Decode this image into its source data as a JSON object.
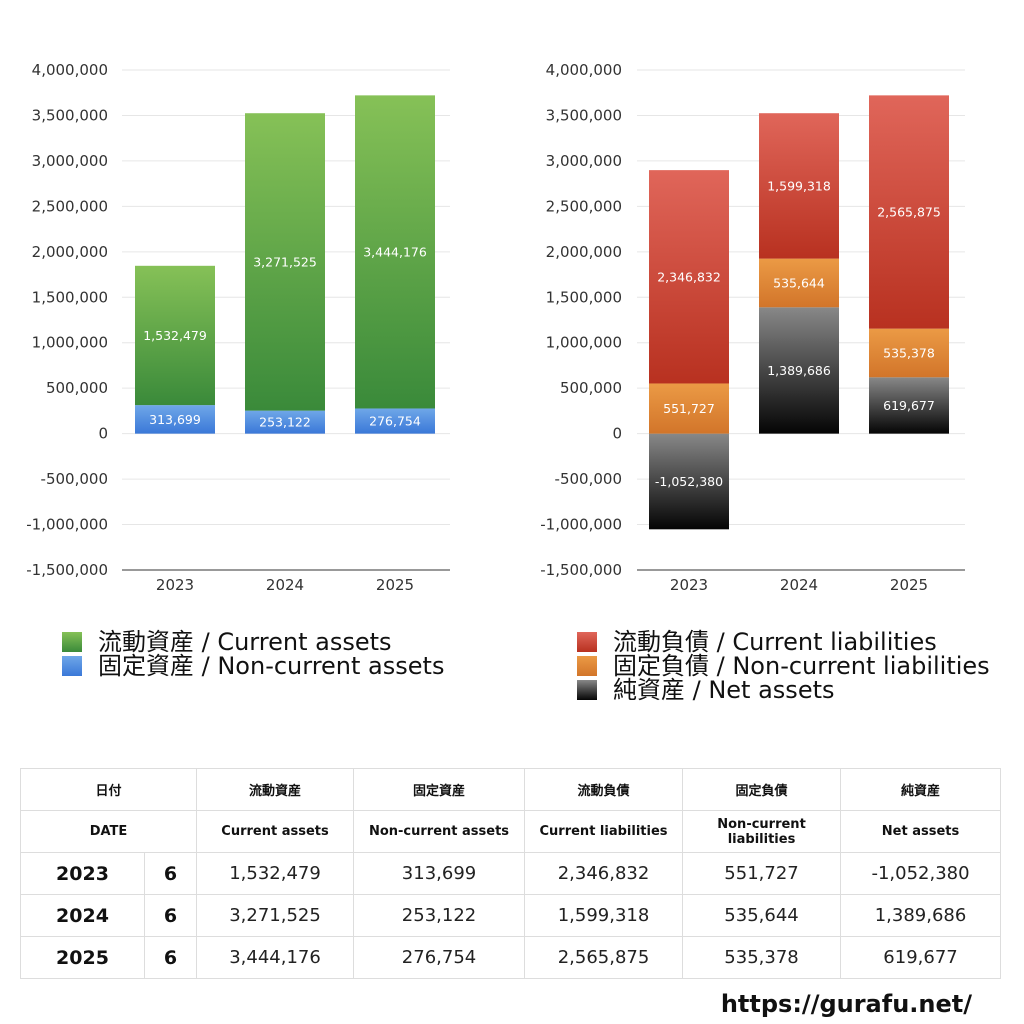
{
  "chart_data": [
    {
      "type": "bar",
      "stacked": true,
      "categories": [
        "2023",
        "2024",
        "2025"
      ],
      "ylim": [
        -1500000,
        4000000
      ],
      "yticks": [
        4000000,
        3500000,
        3000000,
        2500000,
        2000000,
        1500000,
        1000000,
        500000,
        0,
        -500000,
        -1000000,
        -1500000
      ],
      "ytick_labels": [
        "4,000,000",
        "3,500,000",
        "3,000,000",
        "2,500,000",
        "2,000,000",
        "1,500,000",
        "1,000,000",
        "500,000",
        "0",
        "-500,000",
        "-1,000,000",
        "-1,500,000"
      ],
      "series": [
        {
          "name": "固定資産 / Non-current assets",
          "values": [
            313699,
            253122,
            276754
          ],
          "labels": [
            "313,699",
            "253,122",
            "276,754"
          ],
          "color_top": "#6fa7e8",
          "color_bottom": "#3a78d8"
        },
        {
          "name": "流動資産 / Current assets",
          "values": [
            1532479,
            3271525,
            3444176
          ],
          "labels": [
            "1,532,479",
            "3,271,525",
            "3,444,176"
          ],
          "color_top": "#86c157",
          "color_bottom": "#3a8a3a"
        }
      ],
      "legend_order": [
        1,
        0
      ],
      "grid": true,
      "legend_position": "bottom"
    },
    {
      "type": "bar",
      "stacked": true,
      "categories": [
        "2023",
        "2024",
        "2025"
      ],
      "ylim": [
        -1500000,
        4000000
      ],
      "yticks": [
        4000000,
        3500000,
        3000000,
        2500000,
        2000000,
        1500000,
        1000000,
        500000,
        0,
        -500000,
        -1000000,
        -1500000
      ],
      "ytick_labels": [
        "4,000,000",
        "3,500,000",
        "3,000,000",
        "2,500,000",
        "2,000,000",
        "1,500,000",
        "1,000,000",
        "500,000",
        "0",
        "-500,000",
        "-1,000,000",
        "-1,500,000"
      ],
      "series": [
        {
          "name": "純資産 / Net assets",
          "values": [
            -1052380,
            1389686,
            619677
          ],
          "labels": [
            "-1,052,380",
            "1,389,686",
            "619,677"
          ],
          "color_top": "#888888",
          "color_bottom": "#050505"
        },
        {
          "name": "固定負債 / Non-current liabilities",
          "values": [
            551727,
            535644,
            535378
          ],
          "labels": [
            "551,727",
            "535,644",
            "535,378"
          ],
          "color_top": "#eb9a45",
          "color_bottom": "#d2752a"
        },
        {
          "name": "流動負債 / Current liabilities",
          "values": [
            2346832,
            1599318,
            2565875
          ],
          "labels": [
            "2,346,832",
            "1,599,318",
            "2,565,875"
          ],
          "color_top": "#e0665a",
          "color_bottom": "#b83120"
        }
      ],
      "legend_order": [
        2,
        1,
        0
      ],
      "grid": true,
      "legend_position": "bottom"
    }
  ],
  "table": {
    "header_jp": [
      "日付",
      "流動資産",
      "固定資産",
      "流動負債",
      "固定負債",
      "純資産"
    ],
    "header_en": [
      "DATE",
      "Current assets",
      "Non-current assets",
      "Current liabilities",
      "Non-current liabilities",
      "Net assets"
    ],
    "rows": [
      {
        "year": "2023",
        "month": "6",
        "values": [
          "1,532,479",
          "313,699",
          "2,346,832",
          "551,727",
          "-1,052,380"
        ]
      },
      {
        "year": "2024",
        "month": "6",
        "values": [
          "3,271,525",
          "253,122",
          "1,599,318",
          "535,644",
          "1,389,686"
        ]
      },
      {
        "year": "2025",
        "month": "6",
        "values": [
          "3,444,176",
          "276,754",
          "2,565,875",
          "535,378",
          "619,677"
        ]
      }
    ]
  },
  "footer": {
    "site": "https://gurafu.net/"
  }
}
